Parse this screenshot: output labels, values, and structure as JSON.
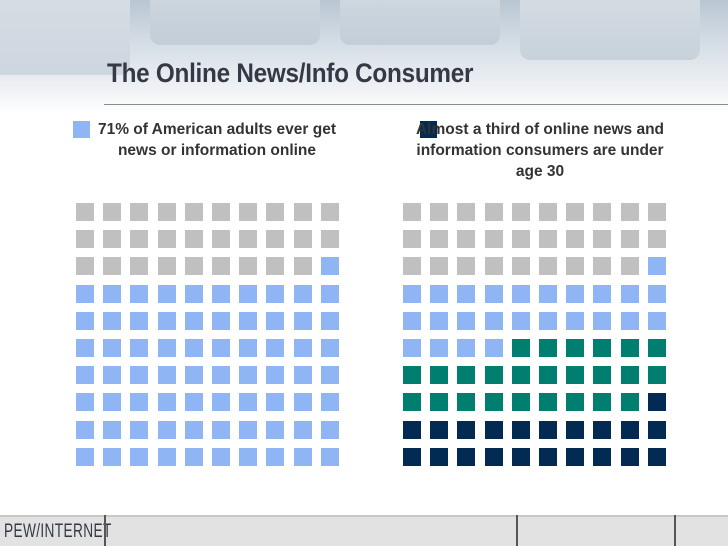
{
  "title": "The Online News/Info Consumer",
  "footer": {
    "logo": "PEW/INTERNET"
  },
  "colors": {
    "gray": "#c0c0c0",
    "light_blue": "#8fb5f5",
    "teal": "#007e70",
    "navy": "#022a52",
    "title": "#333a45"
  },
  "legend": {
    "left": {
      "text": "71% of American adults ever get news or information online",
      "color": "#8fb5f5"
    },
    "right": {
      "text": "Almost a third of online news and information consumers are under age 30",
      "color": "#022a52"
    }
  },
  "chart_data": [
    {
      "type": "waffle",
      "grid": {
        "rows": 10,
        "cols": 10
      },
      "fill_order": "from bottom-right, leftward, upward",
      "segments": [
        {
          "name": "71% of American adults ever get news or information online",
          "count": 71,
          "color": "#8fb5f5"
        },
        {
          "count": 29,
          "color": "#c0c0c0"
        }
      ]
    },
    {
      "type": "waffle",
      "grid": {
        "rows": 10,
        "cols": 10
      },
      "fill_order": "from bottom-right, leftward, upward",
      "segments": [
        {
          "name": "Almost a third of online news and information consumers are under age 30",
          "count": 21,
          "color": "#022a52"
        },
        {
          "count": 25,
          "color": "#007e70"
        },
        {
          "count": 25,
          "color": "#8fb5f5"
        },
        {
          "count": 29,
          "color": "#c0c0c0"
        }
      ]
    }
  ]
}
